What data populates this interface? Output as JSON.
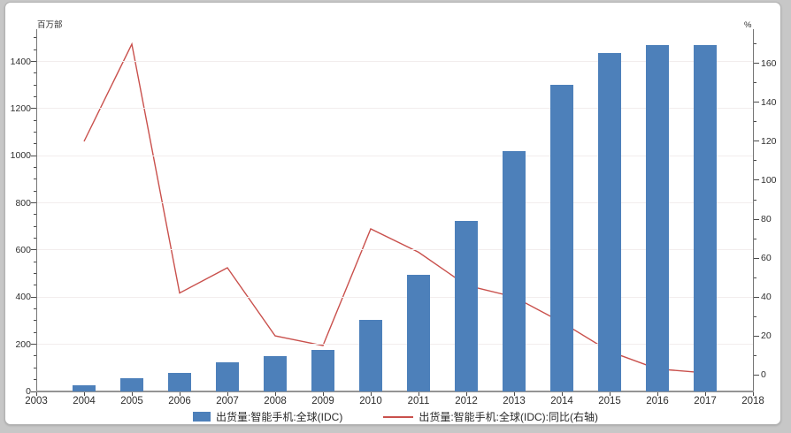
{
  "chart_data": {
    "type": "bar",
    "title": "",
    "categories": [
      2004,
      2005,
      2006,
      2007,
      2008,
      2009,
      2010,
      2011,
      2012,
      2013,
      2014,
      2015,
      2016,
      2017
    ],
    "series": [
      {
        "name": "出货量:智能手机:全球(IDC)",
        "type": "bar",
        "axis": "left",
        "color": "#4d80ba",
        "values": [
          25,
          55,
          80,
          125,
          150,
          175,
          305,
          495,
          725,
          1020,
          1300,
          1435,
          1470,
          1470
        ]
      },
      {
        "name": "出货量:智能手机:全球(IDC):同比(右轴)",
        "type": "line",
        "axis": "right",
        "color": "#c9504c",
        "values": [
          120,
          170,
          42,
          55,
          20,
          15,
          75,
          63,
          46,
          40,
          27,
          12,
          3,
          1
        ]
      }
    ],
    "x_axis": {
      "ticks": [
        2003,
        2004,
        2005,
        2006,
        2007,
        2008,
        2009,
        2010,
        2011,
        2012,
        2013,
        2014,
        2015,
        2016,
        2017,
        2018
      ]
    },
    "left_axis": {
      "unit": "百万部",
      "range": [
        0,
        1537
      ],
      "label_min": 0,
      "label_max": 1400,
      "major_step": 200,
      "minor_step": 50
    },
    "right_axis": {
      "unit": "%",
      "range": [
        -8.6,
        177.7
      ],
      "label_min": 0,
      "label_max": 160,
      "major_step": 20,
      "minor_step": 10
    },
    "grid": true,
    "legend_position": "bottom"
  },
  "colors": {
    "page_bg": "#c7c7c7",
    "panel_bg": "#ffffff",
    "grid": "#f2eded",
    "axis": "#767676",
    "text": "#2e2e2e"
  }
}
